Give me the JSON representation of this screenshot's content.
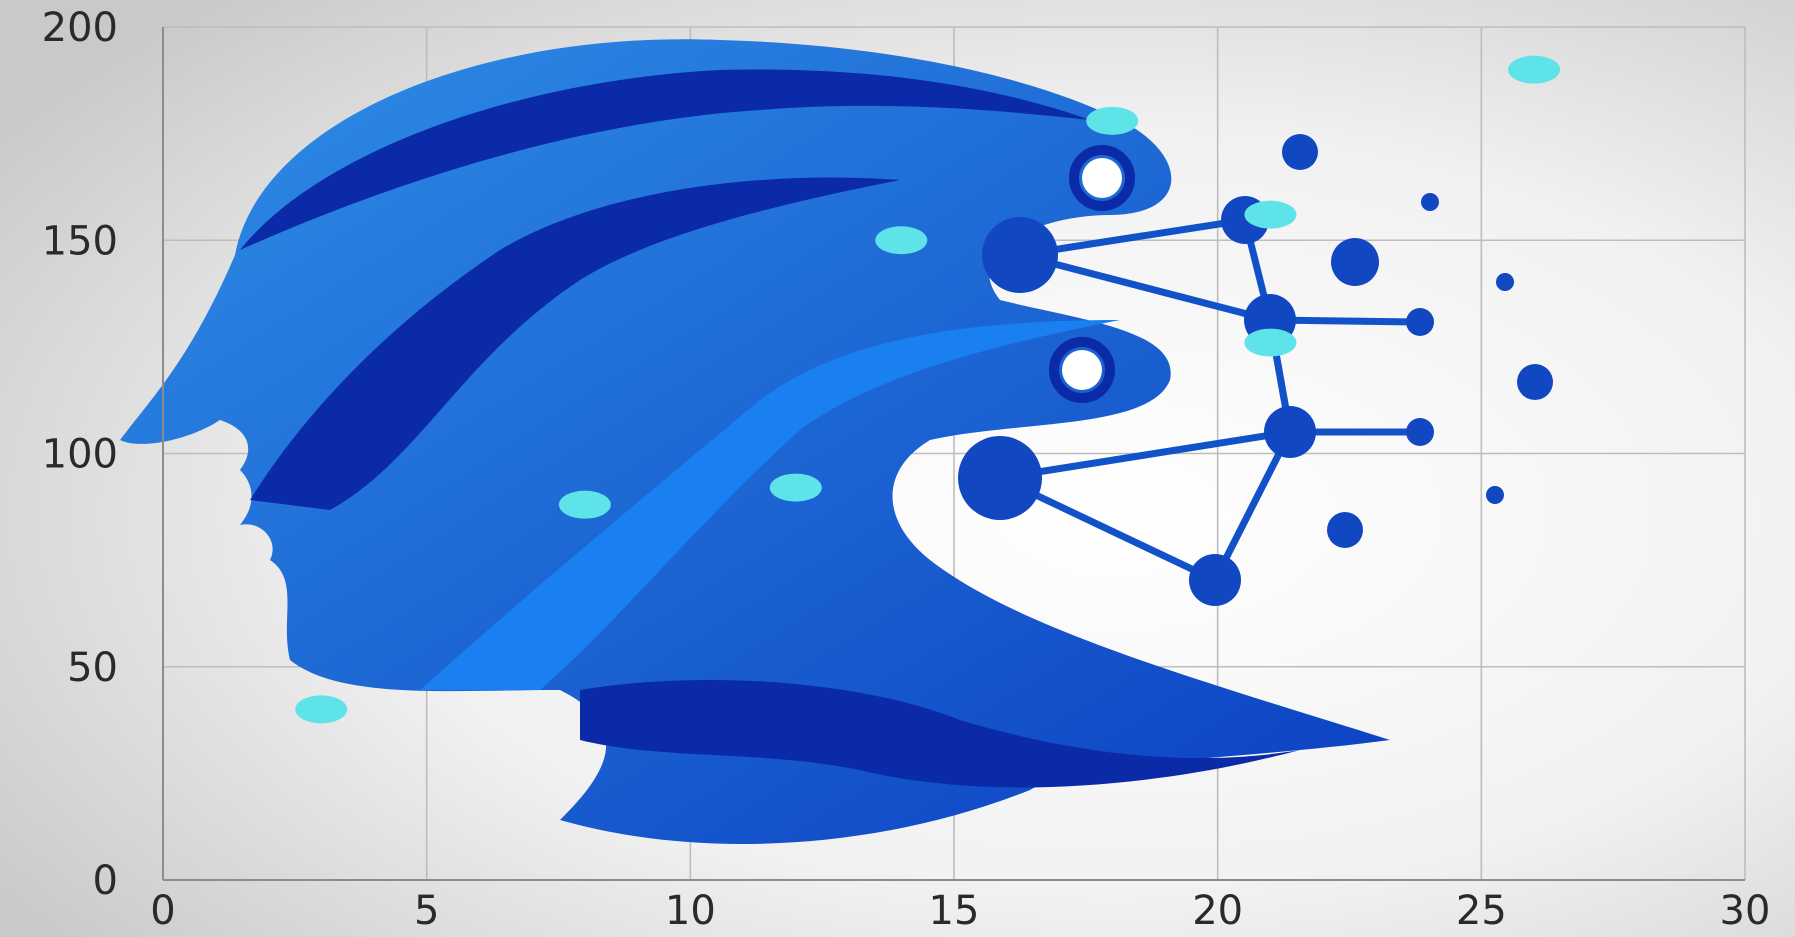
{
  "chart_data": {
    "type": "scatter",
    "title": "",
    "xlabel": "",
    "ylabel": "",
    "xlim": [
      0,
      30
    ],
    "ylim": [
      0,
      200
    ],
    "xticks": [
      "0",
      "5",
      "10",
      "15",
      "20",
      "25",
      "30"
    ],
    "yticks": [
      "0",
      "50",
      "100",
      "150",
      "200"
    ],
    "grid": true,
    "legend": "none",
    "series": [
      {
        "color": "#5ee3e8",
        "points": [
          {
            "x": 3,
            "y": 40
          },
          {
            "x": 8,
            "y": 88
          },
          {
            "x": 12,
            "y": 92
          },
          {
            "x": 14,
            "y": 150
          },
          {
            "x": 18,
            "y": 178
          },
          {
            "x": 21,
            "y": 156
          },
          {
            "x": 21,
            "y": 126
          },
          {
            "x": 26,
            "y": 190
          }
        ]
      }
    ]
  },
  "background": {
    "description_icon": "human-head-network-icon",
    "colors": [
      "#1565d8",
      "#0a2fb0",
      "#4fb3ec"
    ]
  }
}
